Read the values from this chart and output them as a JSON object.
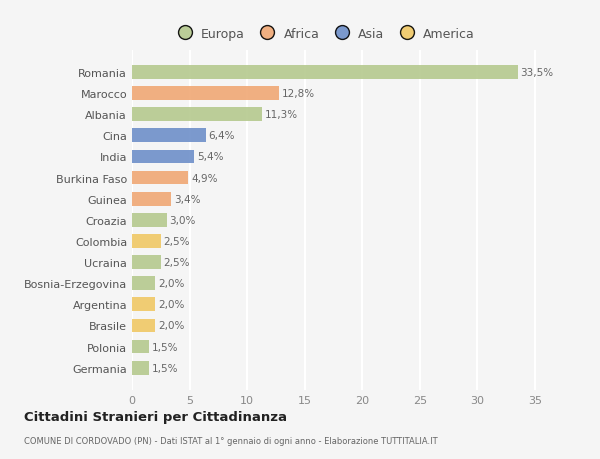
{
  "categories": [
    "Romania",
    "Marocco",
    "Albania",
    "Cina",
    "India",
    "Burkina Faso",
    "Guinea",
    "Croazia",
    "Colombia",
    "Ucraina",
    "Bosnia-Erzegovina",
    "Argentina",
    "Brasile",
    "Polonia",
    "Germania"
  ],
  "values": [
    33.5,
    12.8,
    11.3,
    6.4,
    5.4,
    4.9,
    3.4,
    3.0,
    2.5,
    2.5,
    2.0,
    2.0,
    2.0,
    1.5,
    1.5
  ],
  "labels": [
    "33,5%",
    "12,8%",
    "11,3%",
    "6,4%",
    "5,4%",
    "4,9%",
    "3,4%",
    "3,0%",
    "2,5%",
    "2,5%",
    "2,0%",
    "2,0%",
    "2,0%",
    "1,5%",
    "1,5%"
  ],
  "continents": [
    "Europa",
    "Africa",
    "Europa",
    "Asia",
    "Asia",
    "Africa",
    "Africa",
    "Europa",
    "America",
    "Europa",
    "Europa",
    "America",
    "America",
    "Europa",
    "Europa"
  ],
  "continent_colors": {
    "Europa": "#b5c98e",
    "Africa": "#f0a875",
    "Asia": "#6e8fc9",
    "America": "#f0c865"
  },
  "legend_order": [
    "Europa",
    "Africa",
    "Asia",
    "America"
  ],
  "title": "Cittadini Stranieri per Cittadinanza",
  "subtitle": "COMUNE DI CORDOVADO (PN) - Dati ISTAT al 1° gennaio di ogni anno - Elaborazione TUTTITALIA.IT",
  "xlim": [
    0,
    37
  ],
  "xticks": [
    0,
    5,
    10,
    15,
    20,
    25,
    30,
    35
  ],
  "background_color": "#f5f5f5",
  "grid_color": "#ffffff",
  "bar_height": 0.65
}
